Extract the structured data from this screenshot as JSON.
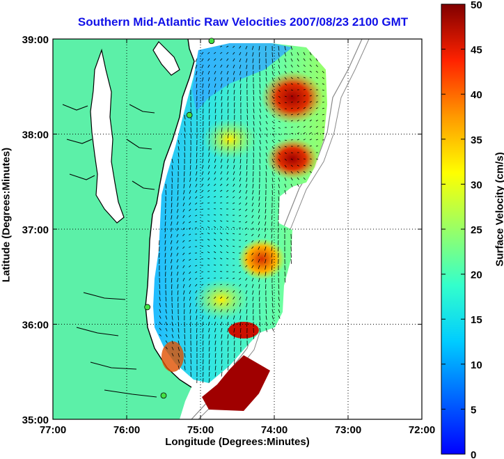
{
  "title": "Southern Mid-Atlantic Raw Velocities 2007/08/23 2100 GMT",
  "axes": {
    "xlabel": "Longitude (Degrees:Minutes)",
    "ylabel": "Latitude (Degrees:Minutes)",
    "xticks": [
      "77:00",
      "76:00",
      "75:00",
      "74:00",
      "73:00",
      "72:00"
    ],
    "yticks": [
      "35:00",
      "36:00",
      "37:00",
      "38:00",
      "39:00"
    ],
    "xlim": [
      -77,
      -72
    ],
    "ylim": [
      35,
      39
    ],
    "grid": true
  },
  "colorbar": {
    "label": "Surface Velocity (cm/s)",
    "ticks": [
      0,
      5,
      10,
      15,
      20,
      25,
      30,
      35,
      40,
      45,
      50
    ],
    "range": [
      0,
      50
    ],
    "colormap": "jet"
  },
  "colors": {
    "title": "#1010e8",
    "land": "#5cf0a8",
    "station": "#44e044",
    "coastline": "#000000",
    "bathymetry": "#888888"
  },
  "stations_lonlat": [
    [
      -74.85,
      38.98
    ],
    [
      -75.15,
      38.2
    ],
    [
      -75.72,
      36.18
    ],
    [
      -75.5,
      35.25
    ]
  ]
}
